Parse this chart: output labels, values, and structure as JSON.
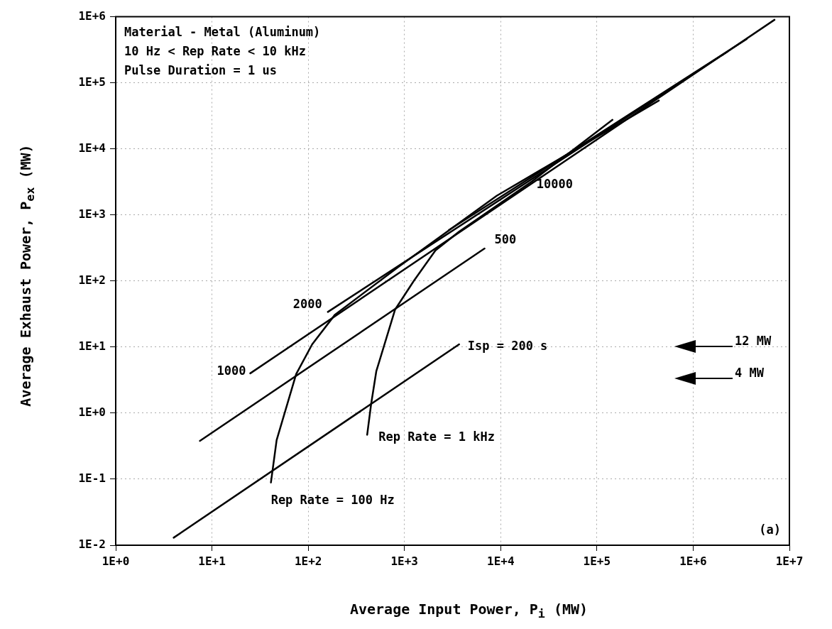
{
  "chart_data": {
    "type": "line",
    "xlabel": "Average Input Power, P$_{i}$ (MW)",
    "ylabel": "Average Exhaust Power, P$_{ex}$ (MW)",
    "log": "xy",
    "grid": true,
    "legend": false,
    "marker": "none",
    "line_style": "solid",
    "xlim": [
      1,
      10000000
    ],
    "ylim": [
      0.01,
      1000000
    ],
    "xticks": [
      {
        "value": 1,
        "label": "1E+0"
      },
      {
        "value": 10,
        "label": "1E+1"
      },
      {
        "value": 100,
        "label": "1E+2"
      },
      {
        "value": 1000,
        "label": "1E+3"
      },
      {
        "value": 10000,
        "label": "1E+4"
      },
      {
        "value": 100000,
        "label": "1E+5"
      },
      {
        "value": 1000000,
        "label": "1E+6"
      },
      {
        "value": 10000000,
        "label": "1E+7"
      }
    ],
    "yticks": [
      {
        "value": 0.01,
        "label": "1E-2"
      },
      {
        "value": 0.1,
        "label": "1E-1"
      },
      {
        "value": 1,
        "label": "1E+0"
      },
      {
        "value": 10,
        "label": "1E+1"
      },
      {
        "value": 100,
        "label": "1E+2"
      },
      {
        "value": 1000,
        "label": "1E+3"
      },
      {
        "value": 10000,
        "label": "1E+4"
      },
      {
        "value": 100000,
        "label": "1E+5"
      },
      {
        "value": 1000000,
        "label": "1E+6"
      }
    ],
    "series": [
      {
        "name": "Isp = 200 s",
        "color": "#000000",
        "x": [
          4,
          3700
        ],
        "values": [
          0.013,
          11
        ]
      },
      {
        "name": "500",
        "color": "#000000",
        "x": [
          7.5,
          6800
        ],
        "values": [
          0.38,
          310
        ]
      },
      {
        "name": "1000",
        "color": "#000000",
        "x": [
          25,
          7000000
        ],
        "values": [
          4,
          900000
        ]
      },
      {
        "name": "2000",
        "color": "#000000",
        "x": [
          160,
          2300000
        ],
        "values": [
          34,
          300000
        ]
      },
      {
        "name": "10000",
        "color": "#000000",
        "x": [
          2900,
          3600000
        ],
        "values": [
          590,
          460000
        ]
      },
      {
        "name": "Rep Rate = 100 Hz",
        "color": "#000000",
        "x": [
          41,
          47,
          75,
          110,
          190,
          850,
          9100,
          440000
        ],
        "values": [
          0.089,
          0.39,
          3.9,
          11,
          31,
          160,
          1950,
          54000
        ]
      },
      {
        "name": "Rep Rate = 1 kHz",
        "color": "#000000",
        "x": [
          410,
          450,
          510,
          800,
          1250,
          2100,
          3700,
          21000,
          145000
        ],
        "values": [
          0.47,
          1.35,
          4.3,
          37,
          100,
          290,
          560,
          3200,
          27500
        ]
      }
    ],
    "annotations": [
      "Material - Metal (Aluminum)",
      "10 Hz < Rep Rate < 10 kHz",
      "Pulse Duration = 1 us",
      "12 MW",
      "4 MW",
      "(a)"
    ]
  }
}
